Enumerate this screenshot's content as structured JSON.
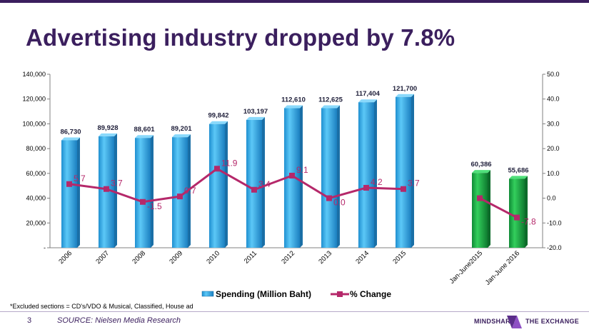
{
  "title": "Advertising industry dropped by 7.8%",
  "footnote": "*Excluded sections = CD's/VDO & Musical, Classified, House ad",
  "page_number": "3",
  "source": "SOURCE: Nielsen Media Research",
  "brand": {
    "left": "MINDSHARE",
    "right": "THE EXCHANGE"
  },
  "colors": {
    "title": "#3b1f5e",
    "bar_blue": "#33b4ef",
    "bar_blue_dark": "#1a6fa6",
    "bar_green": "#19a844",
    "bar_green_dark": "#0d6b2a",
    "line": "#b5286a"
  },
  "chart_data": {
    "type": "bar",
    "categories": [
      "2006",
      "2007",
      "2008",
      "2009",
      "2010",
      "2011",
      "2012",
      "2013",
      "2014",
      "2015",
      "Jan-June2015",
      "Jan-June 2016"
    ],
    "series": [
      {
        "name": "Spending (Million Baht)",
        "axis": "left",
        "values": [
          86730,
          89928,
          88601,
          89201,
          99842,
          103197,
          112610,
          112625,
          117404,
          121700,
          60386,
          55686
        ],
        "labels": [
          "86,730",
          "89,928",
          "88,601",
          "89,201",
          "99,842",
          "103,197",
          "112,610",
          "112,625",
          "117,404",
          "121,700",
          "60,386",
          "55,686"
        ],
        "highlight": [
          false,
          false,
          false,
          false,
          false,
          false,
          false,
          false,
          false,
          false,
          true,
          true
        ]
      },
      {
        "name": "% Change",
        "axis": "right",
        "values": [
          5.7,
          3.7,
          -1.5,
          0.7,
          11.9,
          3.4,
          9.1,
          0.0,
          4.2,
          3.7,
          0.0,
          -7.8
        ],
        "labels": [
          "5.7",
          "3.7",
          "-1.5",
          "0.7",
          "11.9",
          "3.4",
          "9.1",
          "0.0",
          "4.2",
          "3.7",
          "",
          "-7.8"
        ],
        "segments": [
          [
            0,
            9
          ],
          [
            10,
            11
          ]
        ]
      }
    ],
    "y_left": {
      "min": 0,
      "max": 140000,
      "step": 20000,
      "tick_labels": [
        "-",
        "20,000",
        "40,000",
        "60,000",
        "80,000",
        "100,000",
        "120,000",
        "140,000"
      ]
    },
    "y_right": {
      "min": -20,
      "max": 50,
      "step": 10,
      "tick_labels": [
        "-20.0",
        "-10.0",
        "0.0",
        "10.0",
        "20.0",
        "30.0",
        "40.0",
        "50.0"
      ]
    },
    "legend": {
      "position": "bottom",
      "items": [
        "Spending (Million Baht)",
        "% Change"
      ]
    },
    "grid": false
  }
}
